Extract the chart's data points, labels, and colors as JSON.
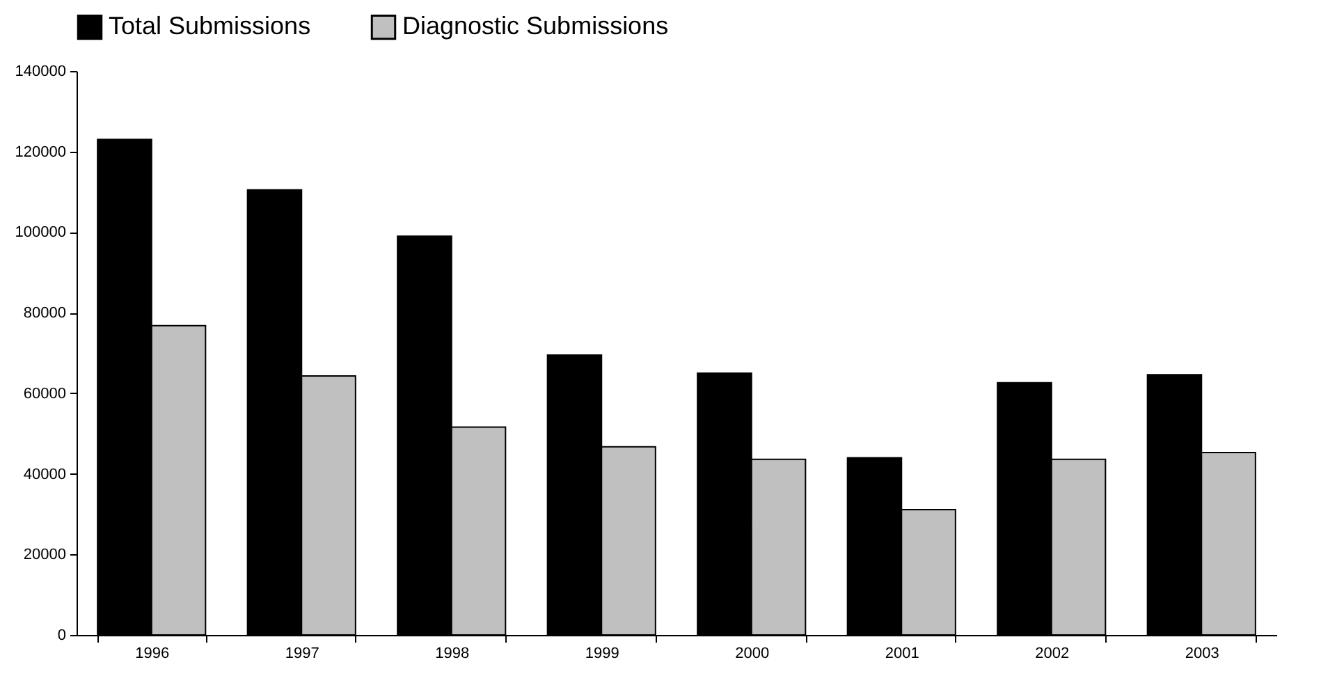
{
  "chart_data": {
    "type": "bar",
    "categories": [
      "1996",
      "1997",
      "1998",
      "1999",
      "2000",
      "2001",
      "2002",
      "2003"
    ],
    "series": [
      {
        "name": "Total Submissions",
        "color": "#000000",
        "values": [
          123000,
          110500,
          99000,
          69500,
          65000,
          44000,
          62600,
          64600
        ]
      },
      {
        "name": "Diagnostic Submissions",
        "color": "#c0c0c0",
        "values": [
          76800,
          64300,
          51600,
          46700,
          43600,
          31100,
          43600,
          45300
        ]
      }
    ],
    "ylim": [
      0,
      140000
    ],
    "yticks": [
      0,
      20000,
      40000,
      60000,
      80000,
      100000,
      120000,
      140000
    ],
    "grid": false,
    "legend": "top"
  }
}
